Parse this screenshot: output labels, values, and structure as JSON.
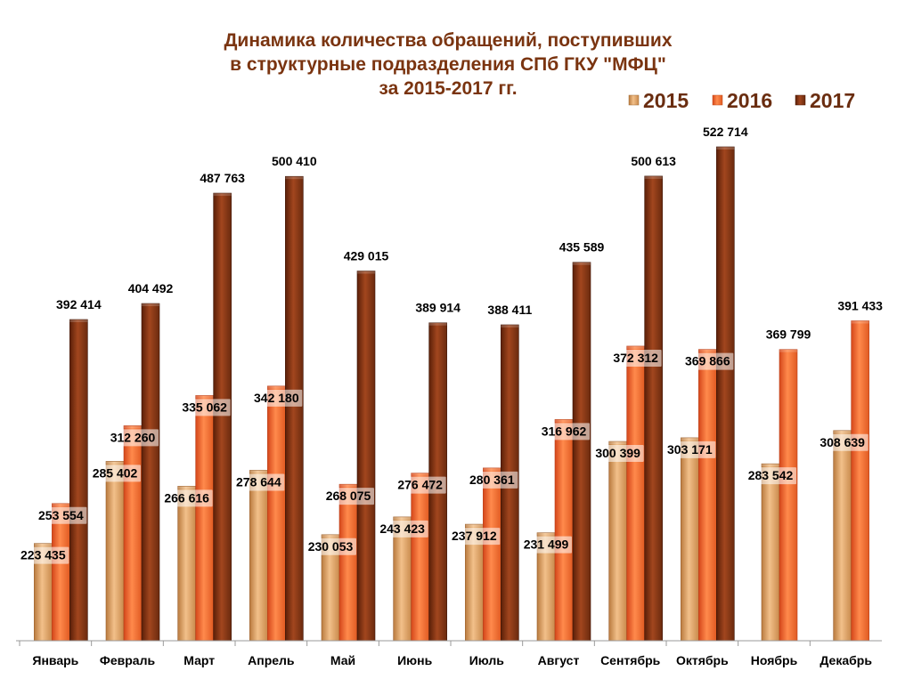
{
  "chart_data": {
    "type": "bar",
    "title": [
      "Динамика количества обращений, поступивших",
      "в структурные подразделения СПб ГКУ \"МФЦ\"",
      "за 2015-2017 гг."
    ],
    "xlabel": "",
    "ylabel": "",
    "ylim": [
      150000,
      540000
    ],
    "legend_position": "top-right",
    "categories": [
      "Январь",
      "Февраль",
      "Март",
      "Апрель",
      "Май",
      "Июнь",
      "Июль",
      "Август",
      "Сентябрь",
      "Октябрь",
      "Ноябрь",
      "Декабрь"
    ],
    "series": [
      {
        "name": "2015",
        "color": "#d9a066",
        "values": [
          223435,
          285402,
          266616,
          278644,
          230053,
          243423,
          237912,
          231499,
          300399,
          303171,
          283542,
          308639
        ],
        "labels": [
          "223 435",
          "285 402",
          "266 616",
          "278 644",
          "230 053",
          "243 423",
          "237 912",
          "231 499",
          "300 399",
          "303 171",
          "283 542",
          "308 639"
        ]
      },
      {
        "name": "2016",
        "color": "#f06a2c",
        "values": [
          253554,
          312260,
          335062,
          342180,
          268075,
          276472,
          280361,
          316962,
          372312,
          369866,
          369799,
          391433
        ],
        "labels": [
          "253 554",
          "312 260",
          "335 062",
          "342 180",
          "268 075",
          "276 472",
          "280 361",
          "316 962",
          "372 312",
          "369 866",
          "369 799",
          "391 433"
        ]
      },
      {
        "name": "2017",
        "color": "#7a2e12",
        "values": [
          392414,
          404492,
          487763,
          500410,
          429015,
          389914,
          388411,
          435589,
          500613,
          522714,
          null,
          null
        ],
        "labels": [
          "392 414",
          "404 492",
          "487 763",
          "500 410",
          "429 015",
          "389 914",
          "388 411",
          "435 589",
          "500 613",
          "522 714",
          null,
          null
        ]
      }
    ]
  }
}
